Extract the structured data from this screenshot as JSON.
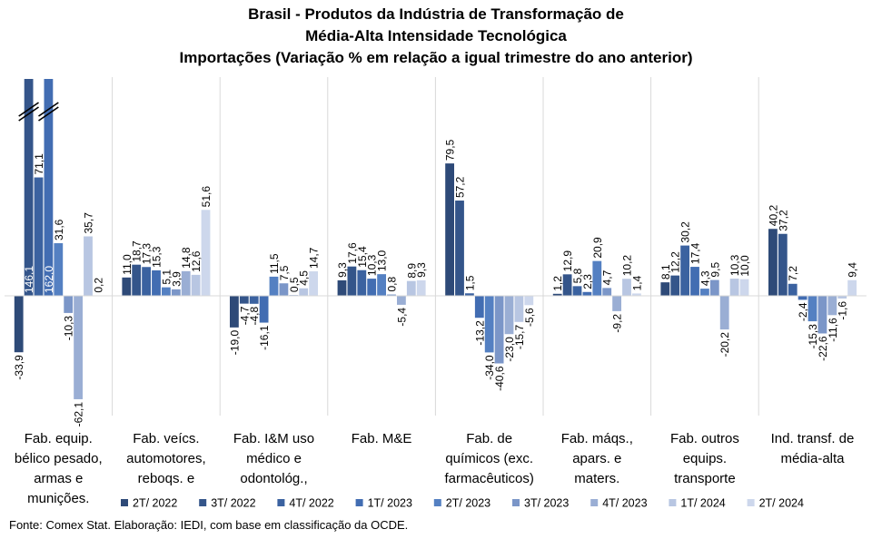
{
  "chart_data": {
    "type": "bar",
    "title_lines": [
      "Brasil - Produtos da Indústria de Transformação de",
      "Média-Alta Intensidade Tecnológica",
      "Importações (Variação % em relação a igual trimestre do ano anterior)"
    ],
    "categories": [
      {
        "lines": [
          "Fab. equip.",
          "bélico pesado,",
          "armas e",
          "munições."
        ]
      },
      {
        "lines": [
          "Fab. veícs.",
          "automotores,",
          "reboqs. e"
        ]
      },
      {
        "lines": [
          "Fab. I&M uso",
          "médico e",
          "odontológ.,"
        ]
      },
      {
        "lines": [
          "Fab. M&E"
        ]
      },
      {
        "lines": [
          "Fab. de",
          "químicos (exc.",
          "farmacêuticos)"
        ]
      },
      {
        "lines": [
          "Fab. máqs.,",
          "apars. e",
          "maters."
        ]
      },
      {
        "lines": [
          "Fab. outros",
          "equips.",
          "transporte"
        ]
      },
      {
        "lines": [
          "Ind. transf. de",
          "média-alta"
        ]
      }
    ],
    "series": [
      {
        "name": "2T/ 2022",
        "color": "#2e4a78",
        "values": [
          -33.9,
          11.0,
          -19.0,
          9.3,
          79.5,
          1.2,
          8.1,
          40.2
        ],
        "labels": [
          "-33,9",
          "11,0",
          "-19,0",
          "9,3",
          "79,5",
          "1,2",
          "8,1",
          "40,2"
        ]
      },
      {
        "name": "3T/ 2022",
        "color": "#34558a",
        "values": [
          146.1,
          18.7,
          -4.7,
          17.6,
          57.2,
          12.9,
          12.2,
          37.2
        ],
        "labels": [
          "146,1",
          "18,7",
          "-4,7",
          "17,6",
          "57,2",
          "12,9",
          "12,2",
          "37,2"
        ]
      },
      {
        "name": "4T/ 2022",
        "color": "#3b62a0",
        "values": [
          71.1,
          17.3,
          -4.8,
          15.4,
          1.5,
          5.8,
          30.2,
          7.2
        ],
        "labels": [
          "71,1",
          "17,3",
          "-4,8",
          "15,4",
          "1,5",
          "5,8",
          "30,2",
          "7,2"
        ]
      },
      {
        "name": "1T/ 2023",
        "color": "#426db2",
        "values": [
          162.0,
          15.3,
          -16.1,
          10.3,
          -13.2,
          2.3,
          17.4,
          -2.4
        ],
        "labels": [
          "162,0",
          "15,3",
          "-16,1",
          "10,3",
          "-13,2",
          "2,3",
          "17,4",
          "-2,4"
        ]
      },
      {
        "name": "2T/ 2023",
        "color": "#5480c2",
        "values": [
          31.6,
          5.1,
          11.5,
          13.0,
          -34.0,
          20.9,
          4.3,
          -15.3
        ],
        "labels": [
          "31,6",
          "5,1",
          "11,5",
          "13,0",
          "-34,0",
          "20,9",
          "4,3",
          "-15,3"
        ]
      },
      {
        "name": "3T/ 2023",
        "color": "#7b96c8",
        "values": [
          -10.3,
          3.9,
          7.5,
          0.8,
          -40.6,
          4.7,
          9.5,
          -22.6
        ],
        "labels": [
          "-10,3",
          "3,9",
          "7,5",
          "0,8",
          "-40,6",
          "4,7",
          "9,5",
          "-22,6"
        ]
      },
      {
        "name": "4T/ 2023",
        "color": "#9aaed4",
        "values": [
          -62.1,
          14.8,
          0.5,
          -5.4,
          -23.0,
          -9.2,
          -20.2,
          -11.6
        ],
        "labels": [
          "-62,1",
          "14,8",
          "0,5",
          "-5,4",
          "-23,0",
          "-9,2",
          "-20,2",
          "-11,6"
        ]
      },
      {
        "name": "1T/ 2024",
        "color": "#b8c6e2",
        "values": [
          35.7,
          12.6,
          4.5,
          8.9,
          -15.7,
          10.2,
          10.3,
          -1.6
        ],
        "labels": [
          "35,7",
          "12,6",
          "4,5",
          "8,9",
          "-15,7",
          "10,2",
          "10,3",
          "-1,6"
        ]
      },
      {
        "name": "2T/ 2024",
        "color": "#cdd7ec",
        "values": [
          0.2,
          51.6,
          14.7,
          9.3,
          -5.6,
          1.4,
          10.0,
          9.4
        ],
        "labels": [
          "0,2",
          "51,6",
          "14,7",
          "9,3",
          "-5,6",
          "1,4",
          "10,0",
          "9,4"
        ]
      }
    ],
    "axis_break": {
      "category_index": 0,
      "series": [
        "3T/ 2022",
        "1T/ 2023"
      ]
    },
    "grid": false,
    "legend": "bottom",
    "source": "Fonte: Comex Stat. Elaboração: IEDI, com base em classificação da OCDE."
  }
}
